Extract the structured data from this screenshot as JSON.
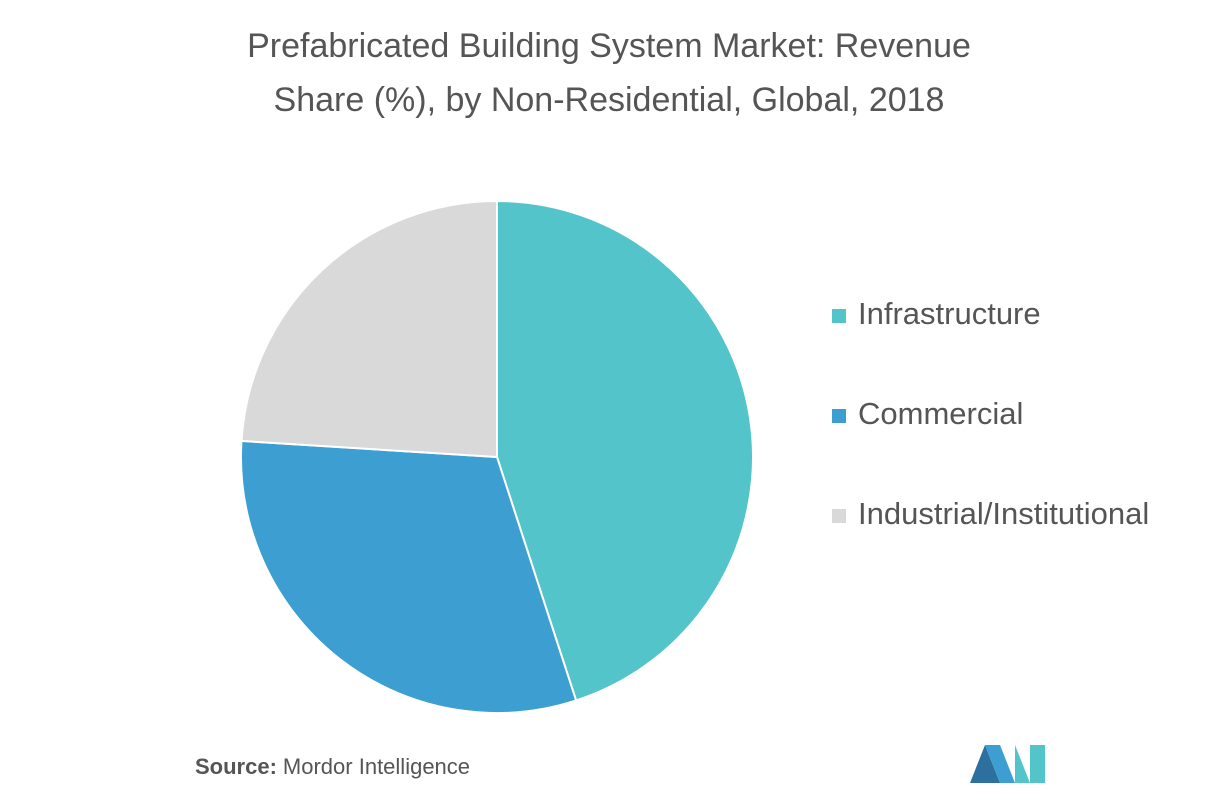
{
  "chart_data": {
    "type": "pie",
    "title": [
      "Prefabricated Building System Market: Revenue",
      "Share (%), by Non-Residential, Global, 2018"
    ],
    "categories": [
      "Infrastructure",
      "Commercial",
      "Industrial/Institutional"
    ],
    "values": [
      45,
      31,
      24
    ],
    "colors": [
      "#53c4c9",
      "#3d9fd1",
      "#d9d9d9"
    ],
    "legend": "right",
    "source": {
      "label": "Source:",
      "text": "Mordor Intelligence"
    }
  }
}
